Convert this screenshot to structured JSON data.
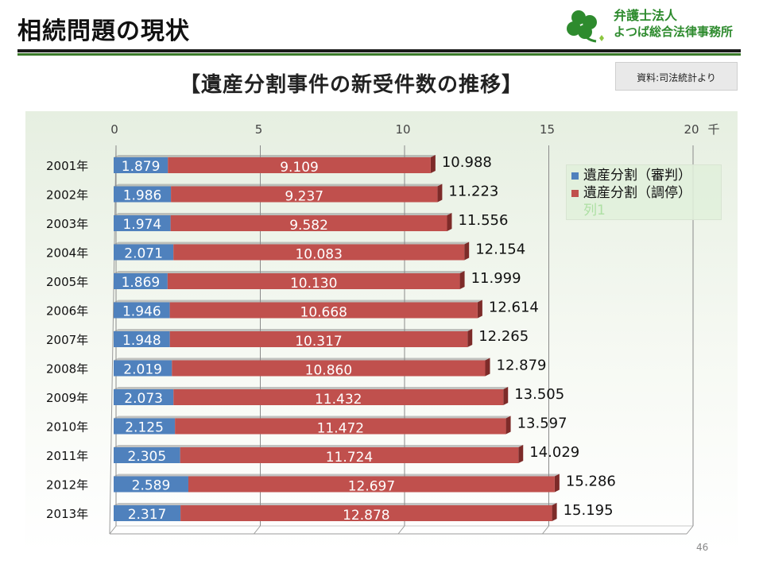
{
  "slide": {
    "title": "相続問題の現状",
    "page_number": "46"
  },
  "logo": {
    "line1": "弁護士法人",
    "line2": "よつば総合法律事務所"
  },
  "source_note": "資料:司法統計より",
  "colors": {
    "series1": "#4f81bd",
    "series2": "#c0504d",
    "accent_green": "#3a7a2a"
  },
  "legend": {
    "items": [
      "遺産分割（審判）",
      "遺産分割（調停）",
      "列1"
    ]
  },
  "chart_data": {
    "type": "bar",
    "orientation": "horizontal",
    "stacked": true,
    "title": "【遺産分割事件の新受件数の推移】",
    "unit_label": "千",
    "xlim": [
      0,
      20
    ],
    "xticks": [
      "0",
      "5",
      "10",
      "15",
      "20"
    ],
    "categories": [
      "2001年",
      "2002年",
      "2003年",
      "2004年",
      "2005年",
      "2006年",
      "2007年",
      "2008年",
      "2009年",
      "2010年",
      "2011年",
      "2012年",
      "2013年"
    ],
    "series": [
      {
        "name": "遺産分割（審判）",
        "values": [
          "1.879",
          "1.986",
          "1.974",
          "2.071",
          "1.869",
          "1.946",
          "1.948",
          "2.019",
          "2.073",
          "2.125",
          "2.305",
          "2.589",
          "2.317"
        ]
      },
      {
        "name": "遺産分割（調停）",
        "values": [
          "9.109",
          "9.237",
          "9.582",
          "10.083",
          "10.130",
          "10.668",
          "10.317",
          "10.860",
          "11.432",
          "11.472",
          "11.724",
          "12.697",
          "12.878"
        ]
      }
    ],
    "totals": [
      "10.988",
      "11.223",
      "11.556",
      "12.154",
      "11.999",
      "12.614",
      "12.265",
      "12.879",
      "13.505",
      "13.597",
      "14.029",
      "15.286",
      "15.195"
    ],
    "grid": "vertical",
    "legend_position": "right"
  }
}
